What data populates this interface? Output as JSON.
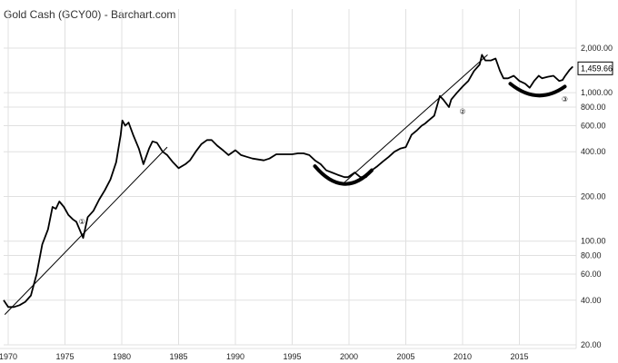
{
  "chart_data": {
    "type": "line",
    "title": "Gold Cash (GCY00) - Barchart.com",
    "scale": "log",
    "ylim": [
      20,
      2400
    ],
    "xlim": [
      1969.6,
      2020.0
    ],
    "grid": true,
    "y_ticks": [
      {
        "value": 20,
        "label": "20.00"
      },
      {
        "value": 40,
        "label": "40.00"
      },
      {
        "value": 60,
        "label": "60.00"
      },
      {
        "value": 80,
        "label": "80.00"
      },
      {
        "value": 100,
        "label": "100.00"
      },
      {
        "value": 200,
        "label": "200.00"
      },
      {
        "value": 400,
        "label": "400.00"
      },
      {
        "value": 600,
        "label": "600.00"
      },
      {
        "value": 800,
        "label": "800.00"
      },
      {
        "value": 1000,
        "label": "1,000.00"
      },
      {
        "value": 2000,
        "label": "2,000.00"
      }
    ],
    "x_ticks": [
      {
        "value": 1970,
        "label": "1970"
      },
      {
        "value": 1975,
        "label": "1975"
      },
      {
        "value": 1980,
        "label": "1980"
      },
      {
        "value": 1985,
        "label": "1985"
      },
      {
        "value": 1990,
        "label": "1990"
      },
      {
        "value": 1995,
        "label": "1995"
      },
      {
        "value": 2000,
        "label": "2000"
      },
      {
        "value": 2005,
        "label": "2005"
      },
      {
        "value": 2010,
        "label": "2010"
      },
      {
        "value": 2015,
        "label": "2015"
      }
    ],
    "last_price": {
      "value": 1459.66,
      "label": "1,459.66"
    },
    "series": [
      {
        "x": [
          1969.6,
          1970.0,
          1970.5,
          1971.0,
          1971.5,
          1972.0,
          1972.5,
          1973.0,
          1973.5,
          1973.9,
          1974.2,
          1974.5,
          1974.9,
          1975.3,
          1975.7,
          1976.0,
          1976.6,
          1977.0,
          1977.5,
          1978.0,
          1978.5,
          1979.0,
          1979.5,
          1979.9,
          1980.05,
          1980.3,
          1980.6,
          1981.0,
          1981.5,
          1981.9,
          1982.4,
          1982.7,
          1983.1,
          1983.6,
          1984.0,
          1984.5,
          1985.0,
          1985.6,
          1986.0,
          1986.5,
          1987.0,
          1987.5,
          1987.9,
          1988.4,
          1988.9,
          1989.4,
          1990.0,
          1990.5,
          1991.0,
          1991.5,
          1992.0,
          1992.5,
          1993.0,
          1993.6,
          1994.0,
          1994.5,
          1995.0,
          1995.5,
          1996.0,
          1996.5,
          1997.0,
          1997.5,
          1998.0,
          1998.5,
          1999.0,
          1999.6,
          1999.9,
          2000.5,
          2001.0,
          2001.5,
          2002.0,
          2002.5,
          2003.0,
          2003.5,
          2004.0,
          2004.5,
          2005.0,
          2005.5,
          2006.0,
          2006.4,
          2006.7,
          2007.0,
          2007.5,
          2008.0,
          2008.3,
          2008.8,
          2009.0,
          2009.5,
          2010.0,
          2010.5,
          2011.0,
          2011.5,
          2011.7,
          2012.0,
          2012.5,
          2012.9,
          2013.3,
          2013.6,
          2014.0,
          2014.5,
          2015.0,
          2015.5,
          2015.9,
          2016.3,
          2016.7,
          2017.0,
          2017.5,
          2018.0,
          2018.5,
          2018.8,
          2019.0,
          2019.4,
          2019.7
        ],
        "values": [
          40,
          36,
          36,
          37,
          39,
          43,
          60,
          95,
          120,
          170,
          165,
          185,
          170,
          150,
          140,
          135,
          105,
          145,
          160,
          190,
          220,
          260,
          340,
          520,
          650,
          600,
          630,
          520,
          420,
          330,
          420,
          470,
          460,
          400,
          380,
          340,
          310,
          330,
          350,
          400,
          450,
          480,
          480,
          440,
          410,
          380,
          410,
          380,
          370,
          360,
          355,
          350,
          360,
          385,
          385,
          385,
          385,
          390,
          390,
          380,
          350,
          330,
          300,
          290,
          280,
          270,
          270,
          290,
          270,
          270,
          300,
          320,
          345,
          370,
          400,
          420,
          430,
          520,
          560,
          600,
          620,
          650,
          700,
          950,
          900,
          800,
          900,
          1000,
          1100,
          1200,
          1400,
          1550,
          1800,
          1650,
          1650,
          1700,
          1400,
          1250,
          1250,
          1300,
          1200,
          1150,
          1080,
          1200,
          1300,
          1250,
          1280,
          1300,
          1200,
          1220,
          1290,
          1420,
          1500
        ],
        "color": "#000000"
      }
    ],
    "trendlines": [
      {
        "x": [
          1969.7,
          1984.0
        ],
        "values": [
          32,
          430
        ]
      },
      {
        "x": [
          1999.5,
          2012.2
        ],
        "values": [
          245,
          1800
        ]
      }
    ],
    "arcs": [
      {
        "x": [
          1997.0,
          2002.0
        ],
        "values": [
          320,
          300
        ],
        "depth": 240
      },
      {
        "x": [
          2014.2,
          2019.0
        ],
        "values": [
          1150,
          1100
        ],
        "depth": 950
      }
    ],
    "annotations": [
      {
        "x": 1976.5,
        "value": 130,
        "label": "①"
      },
      {
        "x": 2010.0,
        "value": 720,
        "label": "②"
      },
      {
        "x": 2019.0,
        "value": 870,
        "label": "③"
      }
    ]
  }
}
